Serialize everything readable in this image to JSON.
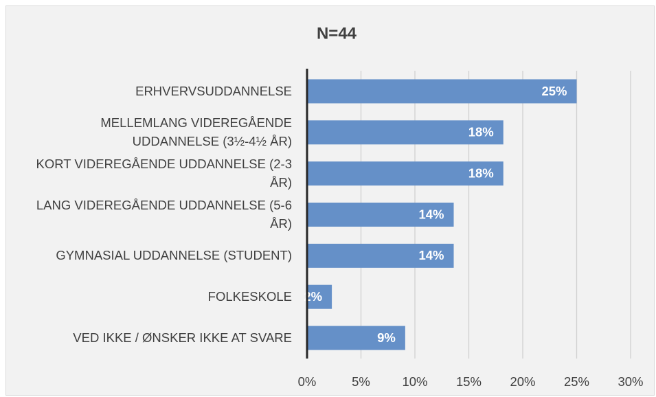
{
  "chart_data": {
    "type": "bar",
    "orientation": "horizontal",
    "title": "N=44",
    "categories": [
      "ERHVERVSUDDANNELSE",
      "MELLEMLANG VIDEREGÅENDE UDDANNELSE (3½-4½ ÅR)",
      "KORT VIDEREGÅENDE UDDANNELSE (2-3 ÅR)",
      "LANG VIDEREGÅENDE UDDANNELSE (5-6 ÅR)",
      "GYMNASIAL UDDANNELSE (STUDENT)",
      "FOLKESKOLE",
      "VED IKKE / ØNSKER IKKE AT SVARE"
    ],
    "values": [
      25,
      18.2,
      18.2,
      13.6,
      13.6,
      2.3,
      9.1
    ],
    "value_labels": [
      "25%",
      "18%",
      "18%",
      "14%",
      "14%",
      "2%",
      "9%"
    ],
    "color": "#6590c8",
    "xlim": [
      0,
      30
    ],
    "xticks": [
      {
        "value": 0,
        "label": "0%"
      },
      {
        "value": 5,
        "label": "5%"
      },
      {
        "value": 10,
        "label": "10%"
      },
      {
        "value": 15,
        "label": "15%"
      },
      {
        "value": 20,
        "label": "20%"
      },
      {
        "value": 25,
        "label": "25%"
      },
      {
        "value": 30,
        "label": "30%"
      }
    ],
    "grid": true
  }
}
